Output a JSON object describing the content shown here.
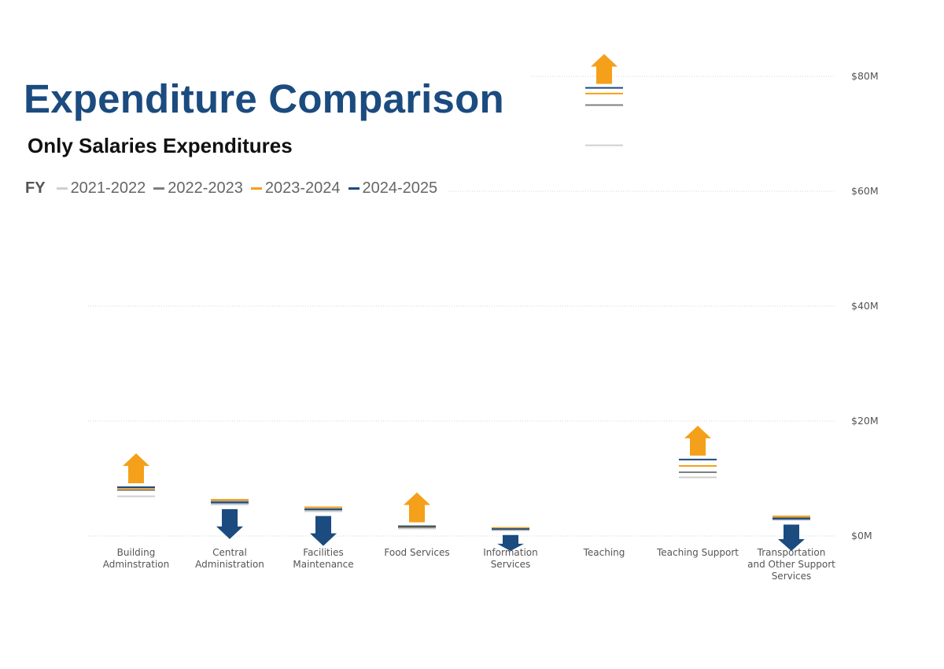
{
  "title": "Expenditure Comparison",
  "subtitle": "Only Salaries Expenditures",
  "legend": {
    "title": "FY",
    "items": [
      {
        "label": "2021-2022",
        "color": "#cfcfcf"
      },
      {
        "label": "2022-2023",
        "color": "#7f7f7f"
      },
      {
        "label": "2023-2024",
        "color": "#f5a01a"
      },
      {
        "label": "2024-2025",
        "color": "#1b4b7f"
      }
    ]
  },
  "colors": {
    "increase": "#f5a01a",
    "decrease": "#1b4b7f"
  },
  "chart_data": {
    "type": "line",
    "x_axis_labels": [
      [
        "Building",
        "Adminstration"
      ],
      [
        "Central",
        "Administration"
      ],
      [
        "Facilities",
        "Maintenance"
      ],
      [
        "Food Services"
      ],
      [
        "Information",
        "Services"
      ],
      [
        "Teaching"
      ],
      [
        "Teaching Support"
      ],
      [
        "Transportation",
        "and Other Support",
        "Services"
      ]
    ],
    "categories": [
      "Building Adminstration",
      "Central Administration",
      "Facilities Maintenance",
      "Food Services",
      "Information Services",
      "Teaching",
      "Teaching Support",
      "Transportation and Other Support Services"
    ],
    "series": [
      {
        "name": "2021-2022",
        "values": [
          6.9,
          5.5,
          4.3,
          1.3,
          1.0,
          68.0,
          10.2,
          2.8
        ]
      },
      {
        "name": "2022-2023",
        "values": [
          8.0,
          6.0,
          4.7,
          1.5,
          1.3,
          75.0,
          11.1,
          3.2
        ]
      },
      {
        "name": "2023-2024",
        "values": [
          8.3,
          6.3,
          5.0,
          1.6,
          1.4,
          77.0,
          12.2,
          3.4
        ]
      },
      {
        "name": "2024-2025",
        "values": [
          8.5,
          5.8,
          4.6,
          1.7,
          1.2,
          78.0,
          13.3,
          3.0
        ]
      }
    ],
    "change_direction": [
      "up",
      "down",
      "down",
      "up",
      "down",
      "up",
      "up",
      "down"
    ],
    "y_ticks": [
      {
        "value": 0,
        "label": "$0M"
      },
      {
        "value": 20,
        "label": "$20M"
      },
      {
        "value": 40,
        "label": "$40M"
      },
      {
        "value": 60,
        "label": "$60M"
      },
      {
        "value": 80,
        "label": "$80M"
      }
    ],
    "ylim": [
      0,
      80
    ],
    "grid": true,
    "legend_position": "top-left"
  }
}
